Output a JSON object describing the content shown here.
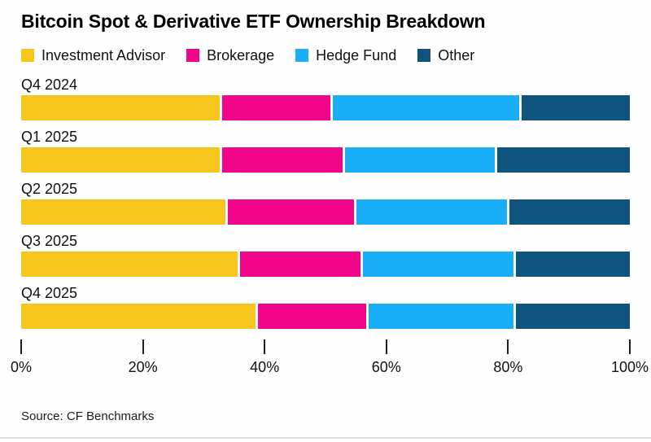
{
  "title": "Bitcoin Spot & Derivative ETF Ownership Breakdown",
  "source": "Source: CF Benchmarks",
  "colors": {
    "investment_advisor": "#F6C51E",
    "brokerage": "#F3058A",
    "hedge_fund": "#19AEF5",
    "other": "#0F547D",
    "text": "#111111",
    "divider": "#D8DCDC"
  },
  "legend": [
    {
      "label": "Investment Advisor",
      "color": "#F6C51E"
    },
    {
      "label": "Brokerage",
      "color": "#F3058A"
    },
    {
      "label": "Hedge Fund",
      "color": "#19AEF5"
    },
    {
      "label": "Other",
      "color": "#0F547D"
    }
  ],
  "chart_data": {
    "type": "bar",
    "orientation": "horizontal",
    "stacked": true,
    "title": "Bitcoin Spot & Derivative ETF Ownership Breakdown",
    "categories": [
      "Q4 2024",
      "Q1 2025",
      "Q2 2025",
      "Q3 2025",
      "Q4 2025"
    ],
    "series": [
      {
        "name": "Investment Advisor",
        "color": "#F6C51E",
        "values": [
          33,
          33,
          34,
          36,
          39
        ]
      },
      {
        "name": "Brokerage",
        "color": "#F3058A",
        "values": [
          18,
          20,
          21,
          20,
          18
        ]
      },
      {
        "name": "Hedge Fund",
        "color": "#19AEF5",
        "values": [
          31,
          25,
          25,
          25,
          24
        ]
      },
      {
        "name": "Other",
        "color": "#0F547D",
        "values": [
          18,
          22,
          20,
          19,
          19
        ]
      }
    ],
    "xlabel": "",
    "ylabel": "",
    "xlim": [
      0,
      100
    ],
    "x_ticks": [
      "0%",
      "20%",
      "40%",
      "60%",
      "80%",
      "100%"
    ],
    "x_tick_values": [
      0,
      20,
      40,
      60,
      80,
      100
    ],
    "grid": false,
    "legend_position": "top",
    "value_unit": "percent"
  }
}
